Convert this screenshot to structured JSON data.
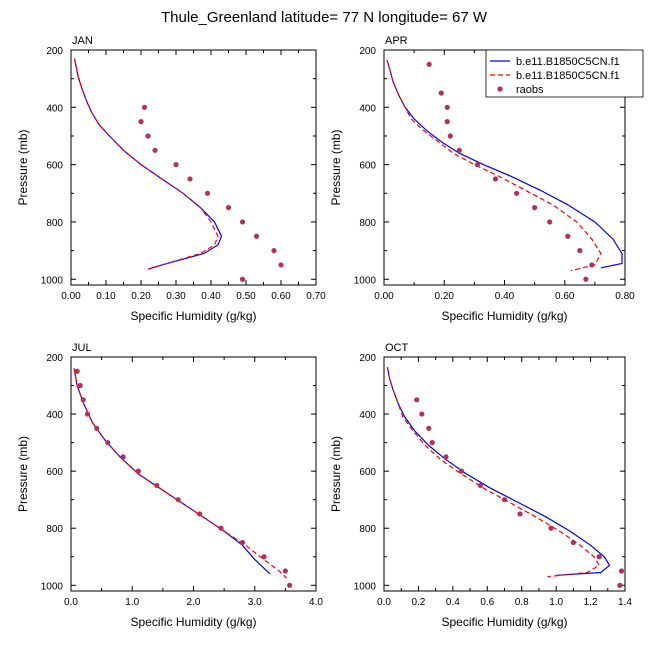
{
  "title": "Thule_Greenland  latitude= 77 N longitude= 67 W",
  "colors": {
    "model_solid": "#0000ff",
    "model_dashed": "#ff0000",
    "raobs": "#b03060",
    "axis": "#000000"
  },
  "legend": {
    "placement": "top-right of APR panel",
    "entries": [
      "b.e11.B1850C5CN.f1",
      "b.e11.B1850C5CN.f1",
      "raobs"
    ]
  },
  "chart_data": [
    {
      "type": "line",
      "panel_label": "JAN",
      "xlabel": "Specific Humidity (g/kg)",
      "ylabel": "Pressure (mb)",
      "xlim": [
        0,
        0.7
      ],
      "ylim": [
        200,
        1020
      ],
      "y_reversed": true,
      "xticks": [
        "0.00",
        "0.10",
        "0.20",
        "0.30",
        "0.40",
        "0.50",
        "0.60",
        "0.70"
      ],
      "yticks": [
        "200",
        "400",
        "600",
        "800",
        "1000"
      ],
      "series": [
        {
          "name": "b.e11.B1850C5CN.f1",
          "style": "solid",
          "x": [
            0.01,
            0.015,
            0.02,
            0.03,
            0.045,
            0.06,
            0.08,
            0.11,
            0.15,
            0.2,
            0.26,
            0.32,
            0.37,
            0.41,
            0.43,
            0.42,
            0.38,
            0.26,
            0.22
          ],
          "y": [
            230,
            260,
            290,
            330,
            380,
            420,
            460,
            500,
            550,
            600,
            650,
            700,
            750,
            800,
            850,
            880,
            910,
            950,
            965
          ]
        },
        {
          "name": "b.e11.B1850C5CN.f1",
          "style": "dashed",
          "x": [
            0.01,
            0.015,
            0.02,
            0.03,
            0.045,
            0.06,
            0.08,
            0.11,
            0.15,
            0.2,
            0.26,
            0.32,
            0.37,
            0.4,
            0.42,
            0.41,
            0.37,
            0.26,
            0.22
          ],
          "y": [
            230,
            260,
            290,
            330,
            380,
            420,
            460,
            500,
            550,
            600,
            650,
            700,
            750,
            800,
            850,
            880,
            910,
            950,
            965
          ]
        },
        {
          "name": "raobs",
          "style": "markers",
          "x": [
            0.21,
            0.2,
            0.22,
            0.24,
            0.3,
            0.34,
            0.39,
            0.45,
            0.49,
            0.53,
            0.58,
            0.6,
            0.49
          ],
          "y": [
            400,
            450,
            500,
            550,
            600,
            650,
            700,
            750,
            800,
            850,
            900,
            950,
            1000
          ]
        }
      ]
    },
    {
      "type": "line",
      "panel_label": "APR",
      "xlabel": "Specific Humidity (g/kg)",
      "ylabel": "Pressure (mb)",
      "xlim": [
        0,
        0.8
      ],
      "ylim": [
        200,
        1020
      ],
      "y_reversed": true,
      "xticks": [
        "0.00",
        "0.20",
        "0.40",
        "0.60",
        "0.80"
      ],
      "yticks": [
        "200",
        "400",
        "600",
        "800",
        "1000"
      ],
      "series": [
        {
          "name": "b.e11.B1850C5CN.f1",
          "style": "solid",
          "x": [
            0.01,
            0.02,
            0.03,
            0.05,
            0.07,
            0.1,
            0.14,
            0.19,
            0.25,
            0.33,
            0.42,
            0.52,
            0.61,
            0.7,
            0.76,
            0.79,
            0.79,
            0.72
          ],
          "y": [
            235,
            270,
            310,
            360,
            400,
            440,
            480,
            520,
            560,
            600,
            640,
            690,
            740,
            800,
            860,
            910,
            945,
            960
          ]
        },
        {
          "name": "b.e11.B1850C5CN.f1",
          "style": "dashed",
          "x": [
            0.01,
            0.02,
            0.03,
            0.05,
            0.07,
            0.09,
            0.13,
            0.18,
            0.23,
            0.3,
            0.38,
            0.47,
            0.56,
            0.64,
            0.69,
            0.72,
            0.7,
            0.62
          ],
          "y": [
            235,
            270,
            310,
            360,
            400,
            440,
            480,
            520,
            560,
            600,
            640,
            690,
            740,
            800,
            860,
            910,
            950,
            970
          ]
        },
        {
          "name": "raobs",
          "style": "markers",
          "x": [
            0.15,
            0.19,
            0.21,
            0.21,
            0.22,
            0.25,
            0.31,
            0.37,
            0.44,
            0.5,
            0.55,
            0.61,
            0.65,
            0.69,
            0.67
          ],
          "y": [
            250,
            350,
            400,
            450,
            500,
            550,
            600,
            650,
            700,
            750,
            800,
            850,
            900,
            950,
            1000
          ]
        }
      ]
    },
    {
      "type": "line",
      "panel_label": "JUL",
      "xlabel": "Specific Humidity (g/kg)",
      "ylabel": "Pressure (mb)",
      "xlim": [
        0,
        4.0
      ],
      "ylim": [
        200,
        1020
      ],
      "y_reversed": true,
      "xticks": [
        "0.0",
        "1.0",
        "2.0",
        "3.0",
        "4.0"
      ],
      "yticks": [
        "200",
        "400",
        "600",
        "800",
        "1000"
      ],
      "series": [
        {
          "name": "b.e11.B1850C5CN.f1",
          "style": "solid",
          "x": [
            0.05,
            0.1,
            0.2,
            0.35,
            0.55,
            0.8,
            1.1,
            1.45,
            1.8,
            2.15,
            2.5,
            2.8,
            3.0,
            3.15,
            3.25
          ],
          "y": [
            240,
            300,
            360,
            430,
            490,
            550,
            610,
            660,
            710,
            760,
            810,
            860,
            910,
            940,
            960
          ]
        },
        {
          "name": "b.e11.B1850C5CN.f1",
          "style": "dashed",
          "x": [
            0.05,
            0.1,
            0.2,
            0.35,
            0.55,
            0.8,
            1.1,
            1.45,
            1.8,
            2.15,
            2.5,
            2.85,
            3.15,
            3.4,
            3.52
          ],
          "y": [
            240,
            300,
            360,
            430,
            490,
            550,
            610,
            660,
            710,
            760,
            810,
            860,
            910,
            950,
            975
          ]
        },
        {
          "name": "raobs",
          "style": "markers",
          "x": [
            0.1,
            0.15,
            0.2,
            0.27,
            0.42,
            0.6,
            0.85,
            1.1,
            1.4,
            1.75,
            2.1,
            2.45,
            2.8,
            3.15,
            3.5,
            3.57
          ],
          "y": [
            250,
            300,
            350,
            400,
            450,
            500,
            550,
            600,
            650,
            700,
            750,
            800,
            850,
            900,
            950,
            1000
          ]
        }
      ]
    },
    {
      "type": "line",
      "panel_label": "OCT",
      "xlabel": "Specific Humidity (g/kg)",
      "ylabel": "Pressure (mb)",
      "xlim": [
        0,
        1.4
      ],
      "ylim": [
        200,
        1020
      ],
      "y_reversed": true,
      "xticks": [
        "0.0",
        "0.2",
        "0.4",
        "0.6",
        "0.8",
        "1.0",
        "1.2",
        "1.4"
      ],
      "yticks": [
        "200",
        "400",
        "600",
        "800",
        "1000"
      ],
      "series": [
        {
          "name": "b.e11.B1850C5CN.f1",
          "style": "solid",
          "x": [
            0.02,
            0.03,
            0.05,
            0.08,
            0.12,
            0.18,
            0.26,
            0.36,
            0.48,
            0.62,
            0.78,
            0.94,
            1.08,
            1.2,
            1.28,
            1.31,
            1.26,
            1.0
          ],
          "y": [
            235,
            270,
            310,
            360,
            410,
            460,
            510,
            560,
            610,
            660,
            710,
            760,
            810,
            860,
            900,
            930,
            955,
            965
          ]
        },
        {
          "name": "b.e11.B1850C5CN.f1",
          "style": "dashed",
          "x": [
            0.02,
            0.03,
            0.05,
            0.08,
            0.11,
            0.17,
            0.24,
            0.33,
            0.45,
            0.58,
            0.73,
            0.88,
            1.02,
            1.14,
            1.22,
            1.25,
            1.18,
            0.95
          ],
          "y": [
            235,
            270,
            310,
            360,
            410,
            460,
            510,
            560,
            610,
            660,
            710,
            760,
            810,
            860,
            900,
            930,
            955,
            970
          ]
        },
        {
          "name": "raobs",
          "style": "markers",
          "x": [
            0.19,
            0.22,
            0.26,
            0.28,
            0.36,
            0.45,
            0.56,
            0.7,
            0.79,
            0.97,
            1.1,
            1.25,
            1.38,
            1.37
          ],
          "y": [
            350,
            400,
            450,
            500,
            550,
            600,
            650,
            700,
            750,
            800,
            850,
            900,
            950,
            1000
          ]
        }
      ]
    }
  ]
}
